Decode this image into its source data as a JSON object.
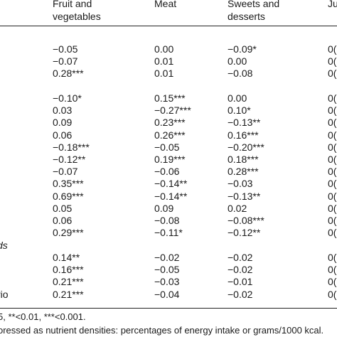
{
  "header": {
    "col1": [
      "Fruit and",
      "vegetables"
    ],
    "col2": [
      "Meat"
    ],
    "col3": [
      "Sweets and",
      "desserts"
    ],
    "col4": [
      "Jui"
    ]
  },
  "rows": [
    {
      "stub": "",
      "c1": "−0.05",
      "c2": "0.00",
      "c3": "−0.09*",
      "c4": "0("
    },
    {
      "stub": "",
      "c1": "−0.07",
      "c2": "0.01",
      "c3": "0.00",
      "c4": "0("
    },
    {
      "stub": "",
      "c1": "0.28***",
      "c2": "0.01",
      "c3": "−0.08",
      "c4": "0("
    },
    {
      "stub": "",
      "c1": "−0.10*",
      "c2": "0.15***",
      "c3": "0.00",
      "c4": "0("
    },
    {
      "stub": "",
      "c1": "0.03",
      "c2": "−0.27***",
      "c3": "0.10*",
      "c4": "0("
    },
    {
      "stub": "",
      "c1": "0.09",
      "c2": "0.23***",
      "c3": "−0.13**",
      "c4": "0("
    },
    {
      "stub": "",
      "c1": "0.06",
      "c2": "0.26***",
      "c3": "0.16***",
      "c4": "0("
    },
    {
      "stub": "",
      "c1": "−0.18***",
      "c2": "−0.05",
      "c3": "−0.20***",
      "c4": "0("
    },
    {
      "stub": "",
      "c1": "−0.12**",
      "c2": "0.19***",
      "c3": "0.18***",
      "c4": "0("
    },
    {
      "stub": "",
      "c1": "−0.07",
      "c2": "−0.06",
      "c3": "0.28***",
      "c4": "0("
    },
    {
      "stub": "",
      "c1": "0.35***",
      "c2": "−0.14**",
      "c3": "−0.03",
      "c4": "0("
    },
    {
      "stub": "",
      "c1": "0.69***",
      "c2": "−0.14**",
      "c3": "−0.13**",
      "c4": "0("
    },
    {
      "stub": "",
      "c1": "0.05",
      "c2": "0.09",
      "c3": "0.02",
      "c4": "0("
    },
    {
      "stub": "",
      "c1": "0.06",
      "c2": "−0.08",
      "c3": "−0.08***",
      "c4": "0("
    },
    {
      "stub": "",
      "c1": "0.29***",
      "c2": "−0.11*",
      "c3": "−0.12**",
      "c4": "0("
    },
    {
      "stub": "ds",
      "c1": "",
      "c2": "",
      "c3": "",
      "c4": ""
    },
    {
      "stub": "",
      "c1": "0.14**",
      "c2": "−0.02",
      "c3": "−0.02",
      "c4": "0("
    },
    {
      "stub": "",
      "c1": "0.16***",
      "c2": "−0.05",
      "c3": "−0.02",
      "c4": "0("
    },
    {
      "stub": "",
      "c1": "0.21***",
      "c2": "−0.03",
      "c3": "−0.01",
      "c4": "0("
    },
    {
      "stub": "rio",
      "c1": "0.21***",
      "c2": "−0.04",
      "c3": "−0.02",
      "c4": "0("
    }
  ],
  "footnotes": [
    "5, **<0.01, ***<0.001.",
    "oressed as nutrient densities: percentages of energy intake or grams/1000 kcal."
  ]
}
